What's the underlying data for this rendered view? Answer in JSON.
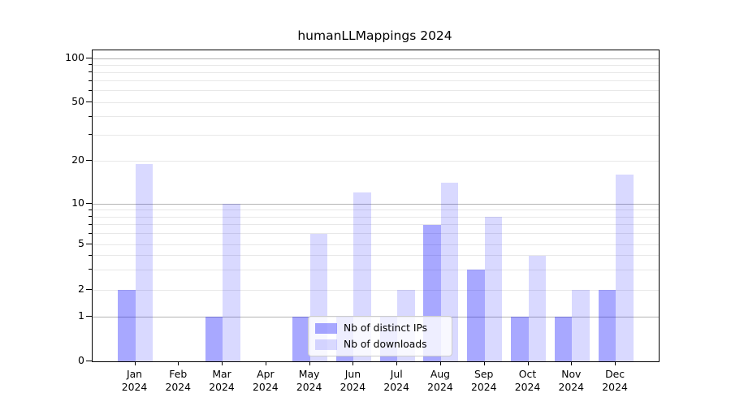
{
  "title": "humanLLMappings 2024",
  "colors": {
    "background": "#ffffff",
    "spine": "#000000",
    "text": "#000000",
    "grid_major": "#b4b4b4",
    "grid_minor": "#e8e8e8",
    "legend_border": "#cccccc",
    "legend_bg": "#ffffff",
    "bar_base": "#0000ff"
  },
  "axes": {
    "y_tick_labels": [
      "0",
      "1",
      "2",
      "5",
      "10",
      "20",
      "50",
      "100"
    ],
    "y_tick_values": [
      0,
      1,
      2,
      5,
      10,
      20,
      50,
      100
    ],
    "y_major_grid_values": [
      1,
      10,
      100
    ],
    "y_minor_grid_values": [
      2,
      3,
      4,
      5,
      6,
      7,
      8,
      9,
      20,
      30,
      40,
      50,
      60,
      70,
      80,
      90
    ],
    "y_minor_tickmark_values": [
      3,
      4,
      6,
      7,
      8,
      9,
      30,
      40,
      60,
      70,
      80,
      90
    ],
    "x_months": [
      "Jan",
      "Feb",
      "Mar",
      "Apr",
      "May",
      "Jun",
      "Jul",
      "Aug",
      "Sep",
      "Oct",
      "Nov",
      "Dec"
    ],
    "x_year": "2024"
  },
  "chart_data": {
    "type": "bar",
    "title": "humanLLMappings 2024",
    "categories": [
      "Jan 2024",
      "Feb 2024",
      "Mar 2024",
      "Apr 2024",
      "May 2024",
      "Jun 2024",
      "Jul 2024",
      "Aug 2024",
      "Sep 2024",
      "Oct 2024",
      "Nov 2024",
      "Dec 2024"
    ],
    "series": [
      {
        "name": "Nb of distinct IPs",
        "color": "#0000ff",
        "alpha": 0.34,
        "values": [
          2,
          0,
          1,
          0,
          1,
          1,
          1,
          7,
          3,
          1,
          1,
          2
        ]
      },
      {
        "name": "Nb of downloads",
        "color": "#0000ff",
        "alpha": 0.15,
        "values": [
          19,
          0,
          10,
          0,
          6,
          12,
          2,
          14,
          8,
          4,
          2,
          16
        ]
      }
    ],
    "xlabel": "",
    "ylabel": "",
    "yscale": "symlog",
    "ylim": [
      0,
      100
    ],
    "grid": true,
    "legend_position": "lower center"
  }
}
